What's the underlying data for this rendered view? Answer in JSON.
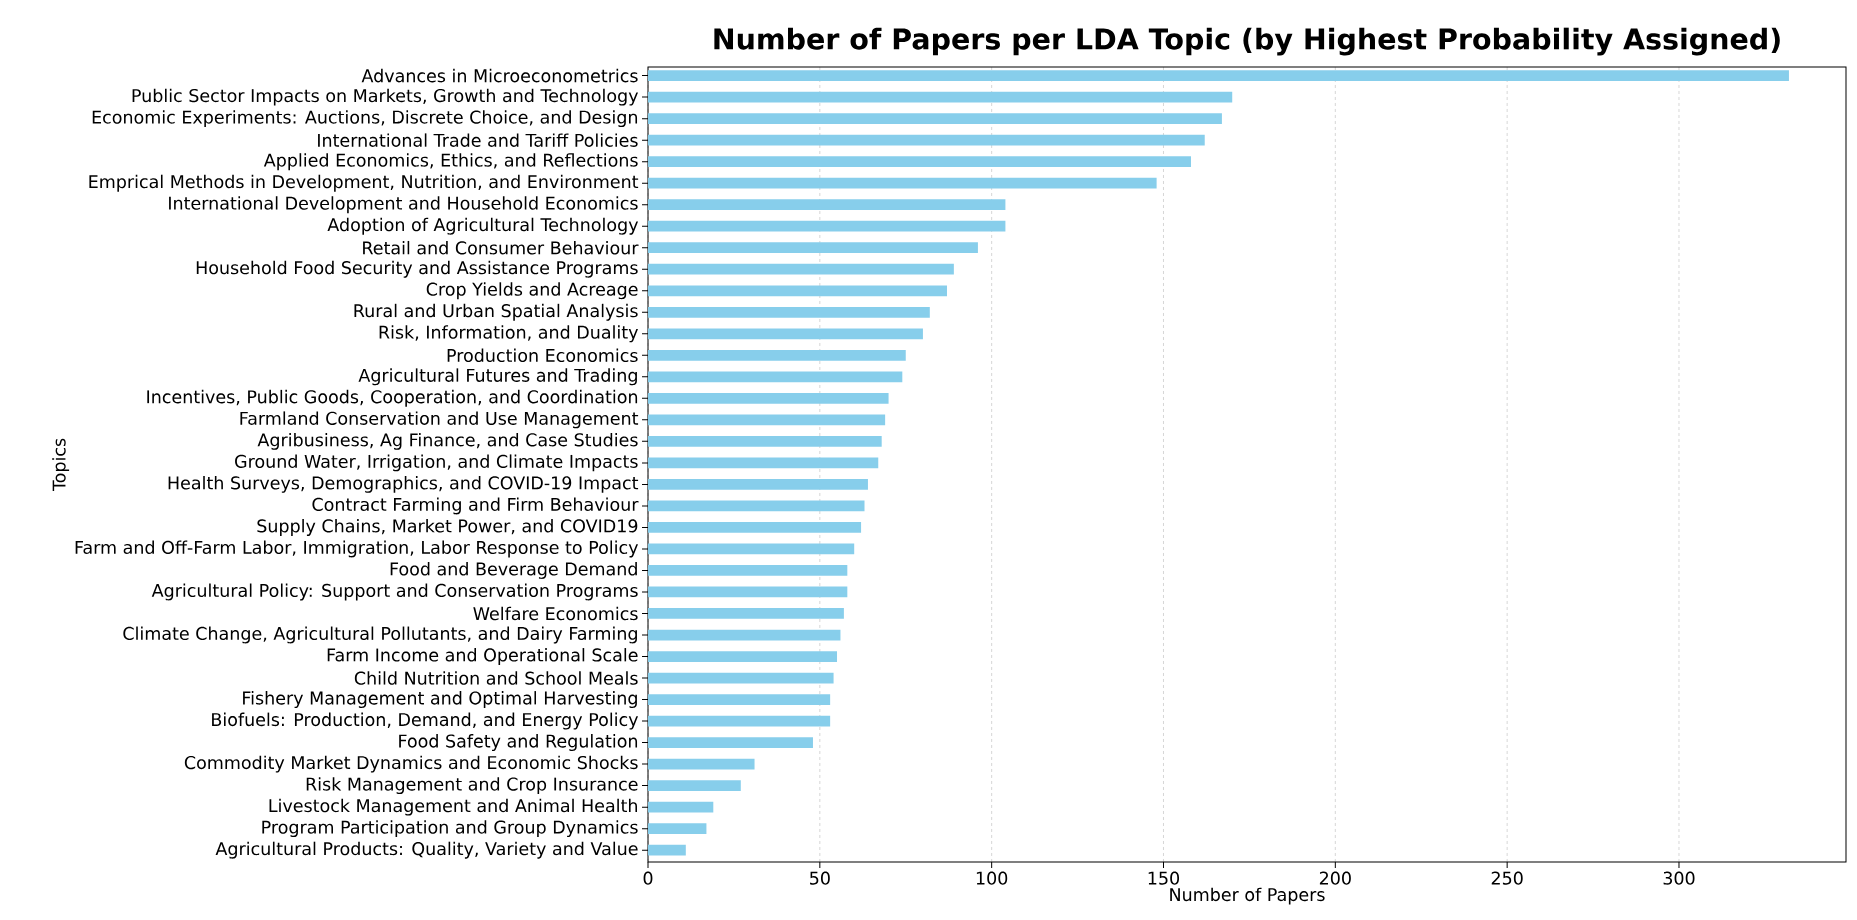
{
  "chart_data": {
    "type": "bar",
    "orientation": "horizontal",
    "title": "Number of Papers per LDA Topic (by Highest Probability Assigned)",
    "xlabel": "Number of Papers",
    "ylabel": "Topics",
    "categories": [
      "Advances in Microeconometrics",
      "Public Sector Impacts on Markets, Growth and Technology",
      "Economic Experiments: Auctions, Discrete Choice, and Design",
      "International Trade and Tariff Policies",
      "Applied Economics, Ethics, and Reflections",
      "Emprical Methods in Development, Nutrition, and Environment",
      "International Development and Household Economics",
      "Adoption of Agricultural Technology",
      "Retail and Consumer Behaviour",
      "Household Food Security and Assistance Programs",
      "Crop Yields and Acreage",
      "Rural and Urban Spatial Analysis",
      "Risk, Information, and Duality",
      "Production Economics",
      "Agricultural Futures and Trading",
      "Incentives, Public Goods, Cooperation, and Coordination",
      "Farmland Conservation and Use Management",
      "Agribusiness, Ag Finance, and Case Studies",
      "Ground Water, Irrigation, and Climate Impacts",
      "Health Surveys, Demographics, and COVID-19 Impact",
      "Contract Farming and Firm Behaviour",
      "Supply Chains, Market Power, and COVID19",
      "Farm and Off-Farm Labor, Immigration, Labor Response to Policy",
      "Food and Beverage Demand",
      "Agricultural Policy: Support and Conservation Programs",
      "Welfare Economics",
      "Climate Change, Agricultural Pollutants, and Dairy Farming",
      "Farm Income and Operational Scale",
      "Child Nutrition and School Meals",
      "Fishery Management and Optimal Harvesting",
      "Biofuels: Production, Demand, and Energy Policy",
      "Food Safety and Regulation",
      "Commodity Market Dynamics and Economic Shocks",
      "Risk Management and Crop Insurance",
      "Livestock Management and Animal Health",
      "Program Participation and Group Dynamics",
      "Agricultural Products: Quality, Variety and Value"
    ],
    "values": [
      332,
      170,
      167,
      162,
      158,
      148,
      104,
      104,
      96,
      89,
      87,
      82,
      80,
      75,
      74,
      70,
      69,
      68,
      67,
      64,
      63,
      62,
      60,
      58,
      58,
      57,
      56,
      55,
      54,
      53,
      53,
      48,
      31,
      27,
      19,
      17,
      11
    ],
    "color": "#87ceeb",
    "xlim": [
      0,
      348.6
    ],
    "xticks": [
      0,
      50,
      100,
      150,
      200,
      250,
      300
    ],
    "grid": "x"
  }
}
